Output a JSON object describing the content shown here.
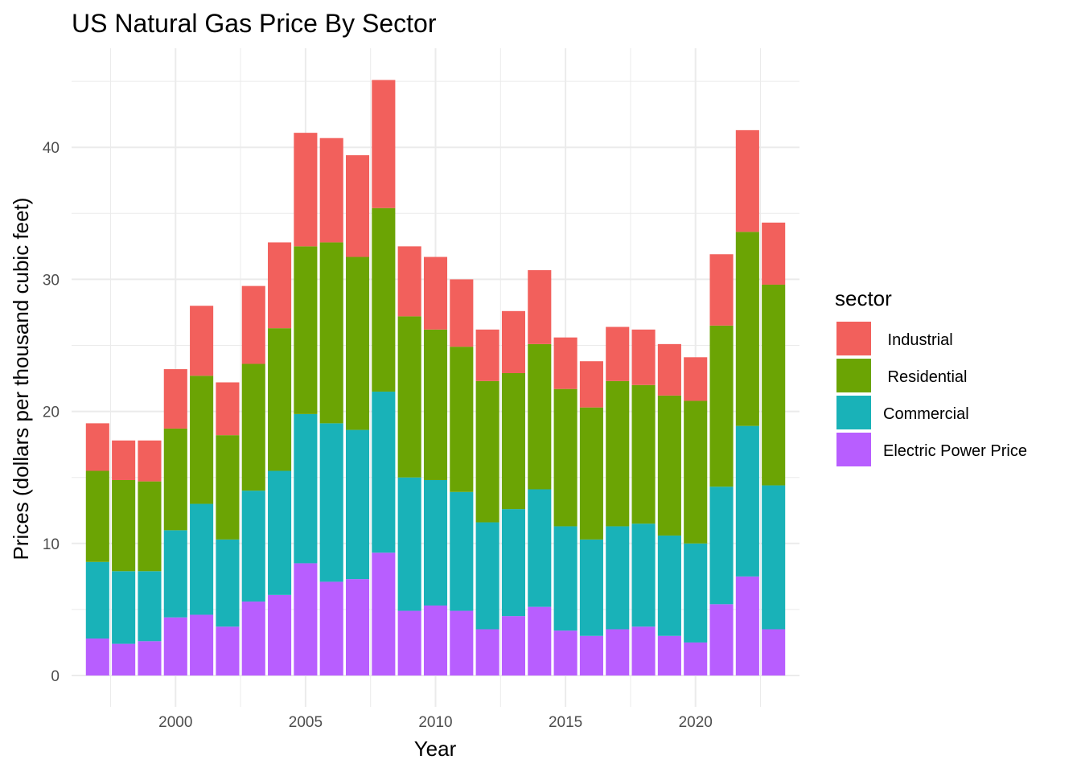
{
  "chart_data": {
    "type": "bar",
    "stacked": true,
    "title": "US Natural Gas Price By Sector",
    "xlabel": "Year",
    "ylabel": "Prices (dollars per thousand cubic feet)",
    "xlim": [
      1996,
      2024
    ],
    "ylim": [
      0,
      46
    ],
    "x_ticks": [
      2000,
      2005,
      2010,
      2015,
      2020
    ],
    "y_ticks": [
      0,
      10,
      20,
      30,
      40
    ],
    "grid": true,
    "legend": {
      "title": "sector",
      "position": "right"
    },
    "categories": [
      1997,
      1998,
      1999,
      2000,
      2001,
      2002,
      2003,
      2004,
      2005,
      2006,
      2007,
      2008,
      2009,
      2010,
      2011,
      2012,
      2013,
      2014,
      2015,
      2016,
      2017,
      2018,
      2019,
      2020,
      2021,
      2022,
      2023
    ],
    "series": [
      {
        "name": "Electric Power Price",
        "color": "#B85EFF",
        "values": [
          2.8,
          2.4,
          2.6,
          4.4,
          4.6,
          3.7,
          5.6,
          6.1,
          8.5,
          7.1,
          7.3,
          9.3,
          4.9,
          5.3,
          4.9,
          3.5,
          4.5,
          5.2,
          3.4,
          3.0,
          3.5,
          3.7,
          3.0,
          2.5,
          5.4,
          7.5,
          3.5
        ]
      },
      {
        "name": "Commercial",
        "color": "#19B2B8",
        "values": [
          5.8,
          5.5,
          5.3,
          6.6,
          8.4,
          6.6,
          8.4,
          9.4,
          11.3,
          12.0,
          11.3,
          12.2,
          10.1,
          9.5,
          9.0,
          8.1,
          8.1,
          8.9,
          7.9,
          7.3,
          7.8,
          7.8,
          7.6,
          7.5,
          8.9,
          11.4,
          10.9
        ]
      },
      {
        "name": "Residential",
        "color": "#6BA404",
        "values": [
          6.9,
          6.9,
          6.8,
          7.7,
          9.7,
          7.9,
          9.6,
          10.8,
          12.7,
          13.7,
          13.1,
          13.9,
          12.2,
          11.4,
          11.0,
          10.7,
          10.3,
          11.0,
          10.4,
          10.0,
          11.0,
          10.5,
          10.6,
          10.8,
          12.2,
          14.7,
          15.2
        ]
      },
      {
        "name": "Industrial",
        "color": "#F2605C",
        "values": [
          3.6,
          3.0,
          3.1,
          4.5,
          5.3,
          4.0,
          5.9,
          6.5,
          8.6,
          7.9,
          7.7,
          9.7,
          5.3,
          5.5,
          5.1,
          3.9,
          4.7,
          5.6,
          3.9,
          3.5,
          4.1,
          4.2,
          3.9,
          3.3,
          5.4,
          7.7,
          4.7
        ]
      }
    ],
    "legend_order": [
      "Industrial",
      "Residential",
      "Commercial",
      "Electric Power Price"
    ],
    "legend_labels": [
      " Industrial",
      " Residential",
      "Commercial",
      "Electric Power Price"
    ]
  }
}
